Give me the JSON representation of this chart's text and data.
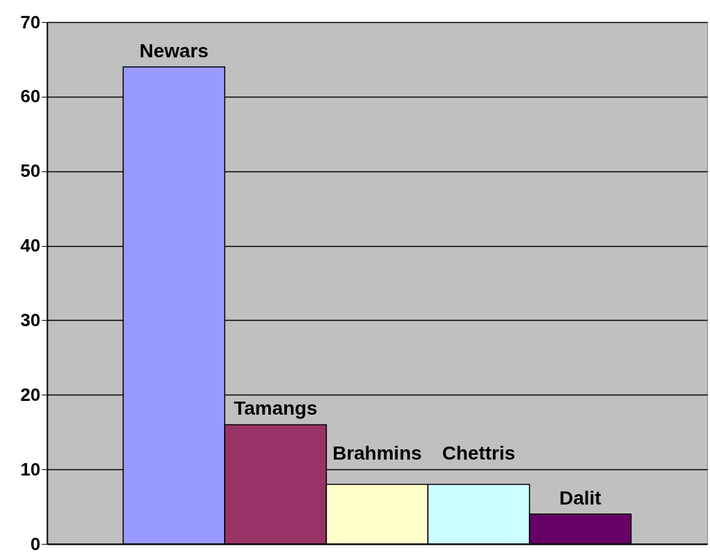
{
  "chart_data": {
    "type": "bar",
    "categories": [
      "Newars",
      "Tamangs",
      "Brahmins",
      "Chettris",
      "Dalit"
    ],
    "values": [
      64,
      16,
      8,
      8,
      4
    ],
    "colors": [
      "#9999ff",
      "#993366",
      "#ffffcc",
      "#ccffff",
      "#660066"
    ],
    "ylim": [
      0,
      70
    ],
    "yticks": [
      0,
      10,
      20,
      30,
      40,
      50,
      60,
      70
    ],
    "grid": "y",
    "tick_labels": "y"
  }
}
